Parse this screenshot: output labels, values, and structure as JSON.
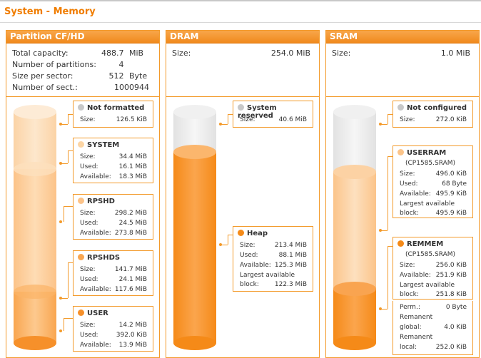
{
  "page": {
    "title": "System - Memory"
  },
  "colors": {
    "accent": "#f07d00",
    "border": "#f39a2a",
    "fill": "#ff9a2e",
    "empty": "#e8e8e8",
    "grey_dot": "#c8c8c8"
  },
  "panels": {
    "partition": {
      "title": "Partition CF/HD",
      "info": [
        {
          "label": "Total capacity:",
          "value": "488.7",
          "unit": "MiB"
        },
        {
          "label": "Number of partitions:",
          "value": "4",
          "unit": ""
        },
        {
          "label": "Size per sector:",
          "value": "512",
          "unit": "Byte"
        },
        {
          "label": "Number of sect.:",
          "value": "1000944",
          "unit": ""
        }
      ],
      "boxes": [
        {
          "title": "Not formatted",
          "rows": [
            {
              "label": "Size:",
              "value": "126.5 KiB"
            }
          ]
        },
        {
          "title": "SYSTEM",
          "rows": [
            {
              "label": "Size:",
              "value": "34.4 MiB"
            },
            {
              "label": "Used:",
              "value": "16.1 MiB"
            },
            {
              "label": "Available:",
              "value": "18.3 MiB"
            }
          ]
        },
        {
          "title": "RPSHD",
          "rows": [
            {
              "label": "Size:",
              "value": "298.2 MiB"
            },
            {
              "label": "Used:",
              "value": "24.5 MiB"
            },
            {
              "label": "Available:",
              "value": "273.8 MiB"
            }
          ]
        },
        {
          "title": "RPSHDS",
          "rows": [
            {
              "label": "Size:",
              "value": "141.7 MiB"
            },
            {
              "label": "Used:",
              "value": "24.1 MiB"
            },
            {
              "label": "Available:",
              "value": "117.6 MiB"
            }
          ]
        },
        {
          "title": "USER",
          "rows": [
            {
              "label": "Size:",
              "value": "14.2 MiB"
            },
            {
              "label": "Used:",
              "value": "392.0 KiB"
            },
            {
              "label": "Available:",
              "value": "13.9 MiB"
            }
          ]
        }
      ]
    },
    "dram": {
      "title": "DRAM",
      "size_label": "Size:",
      "size_value": "254.0 MiB",
      "boxes": [
        {
          "title": "System reserved",
          "rows": [
            {
              "label": "Size:",
              "value": "40.6 MiB"
            }
          ]
        },
        {
          "title": "Heap",
          "rows": [
            {
              "label": "Size:",
              "value": "213.4 MiB"
            },
            {
              "label": "Used:",
              "value": "88.1 MiB"
            },
            {
              "label": "Available:",
              "value": "125.3 MiB"
            },
            {
              "label": "Largest available",
              "value": ""
            },
            {
              "label": "block:",
              "value": "122.3 MiB"
            }
          ]
        }
      ]
    },
    "sram": {
      "title": "SRAM",
      "size_label": "Size:",
      "size_value": "1.0 MiB",
      "boxes": [
        {
          "title": "Not configured",
          "rows": [
            {
              "label": "Size:",
              "value": "272.0 KiB"
            }
          ]
        },
        {
          "title": "USERRAM",
          "subtitle": "(CP1585.SRAM)",
          "rows": [
            {
              "label": "Size:",
              "value": "496.0 KiB"
            },
            {
              "label": "Used:",
              "value": "68 Byte"
            },
            {
              "label": "Available:",
              "value": "495.9 KiB"
            },
            {
              "label": "Largest available",
              "value": ""
            },
            {
              "label": "block:",
              "value": "495.9 KiB"
            }
          ]
        },
        {
          "title": "REMMEM",
          "subtitle": "(CP1585.SRAM)",
          "rows": [
            {
              "label": "Size:",
              "value": "256.0 KiB"
            },
            {
              "label": "Available:",
              "value": "251.9 KiB"
            },
            {
              "label": "Largest available",
              "value": ""
            },
            {
              "label": "block:",
              "value": "251.8 KiB"
            }
          ]
        },
        {
          "rows": [
            {
              "label": "Perm.:",
              "value": "0 Byte"
            },
            {
              "label": "Remanent",
              "value": ""
            },
            {
              "label": "global:",
              "value": "4.0 KiB"
            },
            {
              "label": "Remanent",
              "value": ""
            },
            {
              "label": "local:",
              "value": "252.0 KiB"
            }
          ]
        }
      ]
    }
  }
}
